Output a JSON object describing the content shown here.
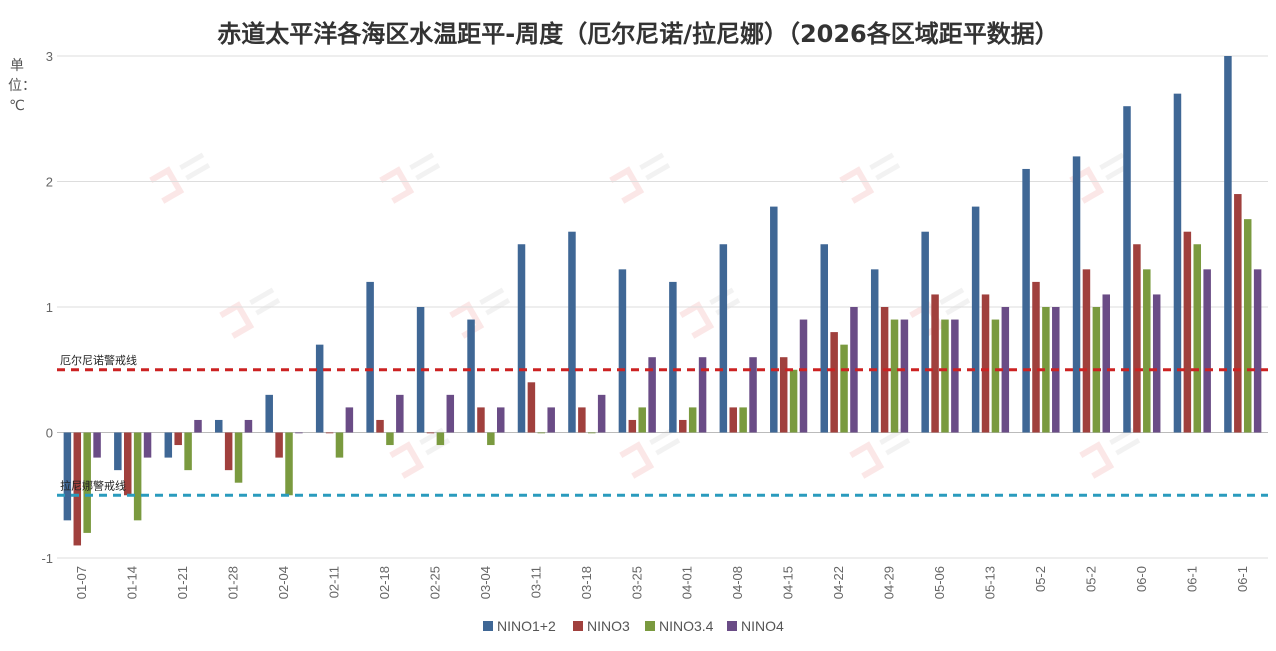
{
  "chart_data": {
    "type": "bar",
    "title": "赤道太平洋各海区水温距平-周度（厄尔尼诺/拉尼娜）（2026各区域距平数据）",
    "ylabel": "单位：℃",
    "xlabel": "",
    "ylim": [
      -1,
      3
    ],
    "yticks": [
      -1,
      0,
      1,
      2,
      3
    ],
    "grid": true,
    "legend_position": "bottom",
    "categories": [
      "01-07",
      "01-14",
      "01-21",
      "01-28",
      "02-04",
      "02-11",
      "02-18",
      "02-25",
      "03-04",
      "03-11",
      "03-18",
      "03-25",
      "04-01",
      "04-08",
      "04-15",
      "04-22",
      "04-29",
      "05-06",
      "05-13",
      "05-2",
      "05-2",
      "06-0",
      "06-1",
      "06-1"
    ],
    "series": [
      {
        "name": "NINO1+2",
        "color": "#3f6795",
        "values": [
          -0.7,
          -0.3,
          -0.2,
          0.1,
          0.3,
          0.7,
          1.2,
          1.0,
          0.9,
          1.5,
          1.6,
          1.3,
          1.2,
          1.5,
          1.8,
          1.5,
          1.3,
          1.6,
          1.8,
          2.1,
          2.2,
          2.6,
          2.7,
          3.0
        ]
      },
      {
        "name": "NINO3",
        "color": "#a0403d",
        "values": [
          -0.9,
          -0.5,
          -0.1,
          -0.3,
          -0.2,
          0.0,
          0.1,
          0.0,
          0.2,
          0.4,
          0.2,
          0.1,
          0.1,
          0.2,
          0.6,
          0.8,
          1.0,
          1.1,
          1.1,
          1.2,
          1.3,
          1.5,
          1.6,
          1.9
        ]
      },
      {
        "name": "NINO3.4",
        "color": "#7a9a3f",
        "values": [
          -0.8,
          -0.7,
          -0.3,
          -0.4,
          -0.5,
          -0.2,
          -0.1,
          -0.1,
          -0.1,
          0.0,
          0.0,
          0.2,
          0.2,
          0.2,
          0.5,
          0.7,
          0.9,
          0.9,
          0.9,
          1.0,
          1.0,
          1.3,
          1.5,
          1.7
        ]
      },
      {
        "name": "NINO4",
        "color": "#6a4c86",
        "values": [
          -0.2,
          -0.2,
          0.1,
          0.1,
          0.0,
          0.2,
          0.3,
          0.3,
          0.2,
          0.2,
          0.3,
          0.6,
          0.6,
          0.6,
          0.9,
          1.0,
          0.9,
          0.9,
          1.0,
          1.0,
          1.1,
          1.1,
          1.3,
          1.3
        ]
      }
    ],
    "reference_lines": [
      {
        "label": "厄尔尼诺警戒线",
        "value": 0.5,
        "color": "#cc2222"
      },
      {
        "label": "拉尼娜警戒线",
        "value": -0.5,
        "color": "#2a9bbd"
      }
    ]
  }
}
